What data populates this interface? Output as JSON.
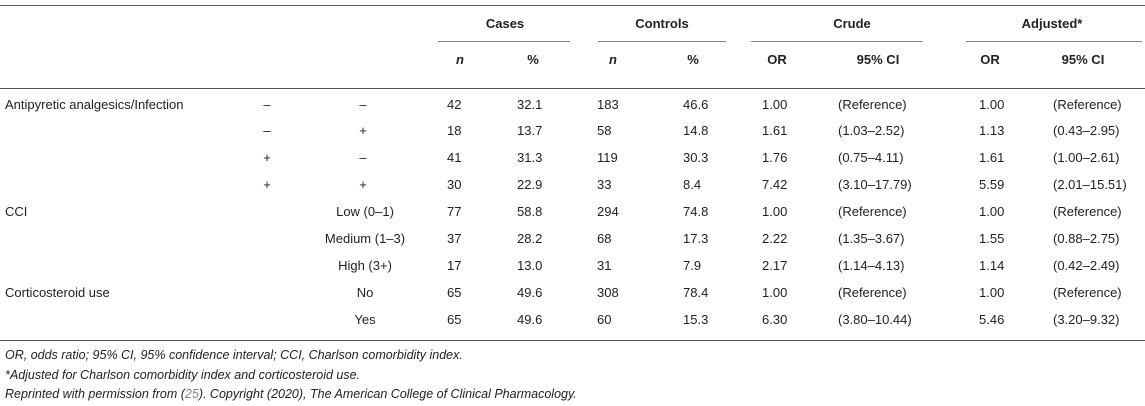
{
  "header": {
    "groups": [
      "Cases",
      "Controls",
      "Crude",
      "Adjusted*"
    ],
    "sub": [
      "n",
      "%",
      "n",
      "%",
      "OR",
      "95% CI",
      "OR",
      "95% CI"
    ]
  },
  "rows": [
    {
      "label": "Antipyretic analgesics/Infection",
      "s1": "–",
      "s2": "–",
      "v": [
        "42",
        "32.1",
        "183",
        "46.6",
        "1.00",
        "(Reference)",
        "1.00",
        "(Reference)"
      ]
    },
    {
      "label": "",
      "s1": "–",
      "s2": "+",
      "v": [
        "18",
        "13.7",
        "58",
        "14.8",
        "1.61",
        "(1.03–2.52)",
        "1.13",
        "(0.43–2.95)"
      ]
    },
    {
      "label": "",
      "s1": "+",
      "s2": "–",
      "v": [
        "41",
        "31.3",
        "119",
        "30.3",
        "1.76",
        "(0.75–4.11)",
        "1.61",
        "(1.00–2.61)"
      ]
    },
    {
      "label": "",
      "s1": "+",
      "s2": "+",
      "v": [
        "30",
        "22.9",
        "33",
        "8.4",
        "7.42",
        "(3.10–17.79)",
        "5.59",
        "(2.01–15.51)"
      ]
    },
    {
      "label": "CCI",
      "cat": "Low (0–1)",
      "v": [
        "77",
        "58.8",
        "294",
        "74.8",
        "1.00",
        "(Reference)",
        "1.00",
        "(Reference)"
      ]
    },
    {
      "label": "",
      "cat": "Medium (1–3)",
      "v": [
        "37",
        "28.2",
        "68",
        "17.3",
        "2.22",
        "(1.35–3.67)",
        "1.55",
        "(0.88–2.75)"
      ]
    },
    {
      "label": "",
      "cat": "High (3+)",
      "v": [
        "17",
        "13.0",
        "31",
        "7.9",
        "2.17",
        "(1.14–4.13)",
        "1.14",
        "(0.42–2.49)"
      ]
    },
    {
      "label": "Corticosteroid use",
      "cat": "No",
      "v": [
        "65",
        "49.6",
        "308",
        "78.4",
        "1.00",
        "(Reference)",
        "1.00",
        "(Reference)"
      ]
    },
    {
      "label": "",
      "cat": "Yes",
      "v": [
        "65",
        "49.6",
        "60",
        "15.3",
        "6.30",
        "(3.80–10.44)",
        "5.46",
        "(3.20–9.32)"
      ]
    }
  ],
  "footnotes": {
    "abbrev": "OR, odds ratio; 95% CI, 95% confidence interval; CCI, Charlson comorbidity index.",
    "adjusted": "*Adjusted for Charlson comorbidity index and corticosteroid use.",
    "reprint_pre": "Reprinted with permission from (",
    "reprint_ref": "25",
    "reprint_post": "). Copyright (2020), The American College of Clinical Pharmacology."
  }
}
